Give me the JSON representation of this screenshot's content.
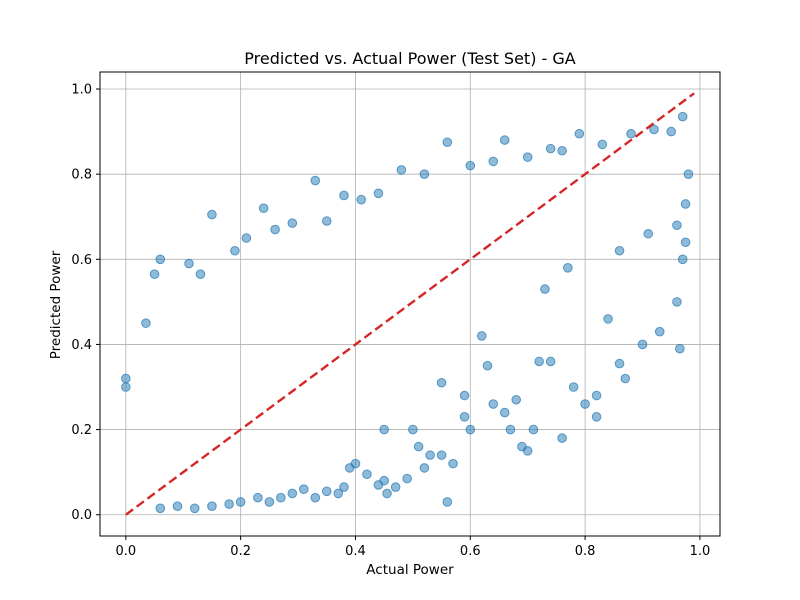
{
  "chart_data": {
    "type": "scatter",
    "title": "Predicted vs. Actual Power (Test Set) - GA",
    "xlabel": "Actual Power",
    "ylabel": "Predicted Power",
    "xlim": [
      -0.045,
      1.035
    ],
    "ylim": [
      -0.05,
      1.04
    ],
    "xticks": [
      0.0,
      0.2,
      0.4,
      0.6,
      0.8,
      1.0
    ],
    "xtick_labels": [
      "0.0",
      "0.2",
      "0.4",
      "0.6",
      "0.8",
      "1.0"
    ],
    "yticks": [
      0.0,
      0.2,
      0.4,
      0.6,
      0.8,
      1.0
    ],
    "ytick_labels": [
      "0.0",
      "0.2",
      "0.4",
      "0.6",
      "0.8",
      "1.0"
    ],
    "grid": true,
    "point_color": "#1f77b4",
    "point_alpha": 0.5,
    "reference_line": {
      "x": [
        0.0,
        0.99
      ],
      "y": [
        0.0,
        0.99
      ],
      "color": "#d62728",
      "style": "dashed"
    },
    "series": [
      {
        "points": [
          [
            0.15,
            0.705
          ],
          [
            0.33,
            0.785
          ],
          [
            0.56,
            0.875
          ],
          [
            0.66,
            0.88
          ],
          [
            0.79,
            0.895
          ],
          [
            0.97,
            0.935
          ],
          [
            0.06,
            0.6
          ],
          [
            0.05,
            0.565
          ],
          [
            0.0,
            0.32
          ],
          [
            0.0,
            0.3
          ],
          [
            0.035,
            0.45
          ],
          [
            0.11,
            0.59
          ],
          [
            0.13,
            0.565
          ],
          [
            0.19,
            0.62
          ],
          [
            0.21,
            0.65
          ],
          [
            0.24,
            0.72
          ],
          [
            0.26,
            0.67
          ],
          [
            0.29,
            0.685
          ],
          [
            0.35,
            0.69
          ],
          [
            0.38,
            0.75
          ],
          [
            0.41,
            0.74
          ],
          [
            0.44,
            0.755
          ],
          [
            0.48,
            0.81
          ],
          [
            0.52,
            0.8
          ],
          [
            0.6,
            0.82
          ],
          [
            0.64,
            0.83
          ],
          [
            0.7,
            0.84
          ],
          [
            0.74,
            0.86
          ],
          [
            0.76,
            0.855
          ],
          [
            0.83,
            0.87
          ],
          [
            0.88,
            0.895
          ],
          [
            0.92,
            0.905
          ],
          [
            0.95,
            0.9
          ],
          [
            0.98,
            0.8
          ],
          [
            0.975,
            0.73
          ],
          [
            0.96,
            0.68
          ],
          [
            0.975,
            0.64
          ],
          [
            0.97,
            0.6
          ],
          [
            0.96,
            0.5
          ],
          [
            0.965,
            0.39
          ],
          [
            0.93,
            0.43
          ],
          [
            0.9,
            0.4
          ],
          [
            0.86,
            0.355
          ],
          [
            0.87,
            0.32
          ],
          [
            0.84,
            0.46
          ],
          [
            0.82,
            0.28
          ],
          [
            0.82,
            0.23
          ],
          [
            0.8,
            0.26
          ],
          [
            0.78,
            0.3
          ],
          [
            0.76,
            0.18
          ],
          [
            0.74,
            0.36
          ],
          [
            0.72,
            0.36
          ],
          [
            0.71,
            0.2
          ],
          [
            0.7,
            0.15
          ],
          [
            0.69,
            0.16
          ],
          [
            0.67,
            0.2
          ],
          [
            0.66,
            0.24
          ],
          [
            0.64,
            0.26
          ],
          [
            0.6,
            0.2
          ],
          [
            0.59,
            0.23
          ],
          [
            0.59,
            0.28
          ],
          [
            0.57,
            0.12
          ],
          [
            0.55,
            0.14
          ],
          [
            0.53,
            0.14
          ],
          [
            0.52,
            0.11
          ],
          [
            0.51,
            0.16
          ],
          [
            0.5,
            0.2
          ],
          [
            0.49,
            0.085
          ],
          [
            0.47,
            0.065
          ],
          [
            0.455,
            0.05
          ],
          [
            0.45,
            0.08
          ],
          [
            0.44,
            0.07
          ],
          [
            0.42,
            0.095
          ],
          [
            0.4,
            0.12
          ],
          [
            0.39,
            0.11
          ],
          [
            0.38,
            0.065
          ],
          [
            0.37,
            0.05
          ],
          [
            0.35,
            0.055
          ],
          [
            0.33,
            0.04
          ],
          [
            0.31,
            0.06
          ],
          [
            0.29,
            0.05
          ],
          [
            0.27,
            0.04
          ],
          [
            0.25,
            0.03
          ],
          [
            0.23,
            0.04
          ],
          [
            0.2,
            0.03
          ],
          [
            0.18,
            0.025
          ],
          [
            0.15,
            0.02
          ],
          [
            0.12,
            0.015
          ],
          [
            0.09,
            0.02
          ],
          [
            0.06,
            0.015
          ],
          [
            0.56,
            0.03
          ],
          [
            0.73,
            0.53
          ],
          [
            0.62,
            0.42
          ],
          [
            0.45,
            0.2
          ],
          [
            0.68,
            0.27
          ],
          [
            0.55,
            0.31
          ],
          [
            0.63,
            0.35
          ],
          [
            0.77,
            0.58
          ],
          [
            0.86,
            0.62
          ],
          [
            0.91,
            0.66
          ]
        ]
      }
    ]
  }
}
